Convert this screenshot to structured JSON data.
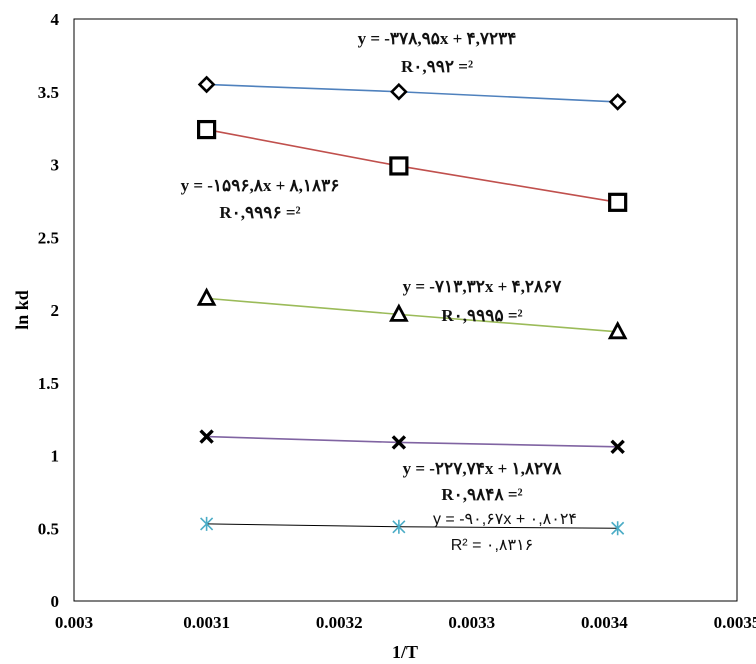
{
  "chart_data": {
    "type": "scatter",
    "title": "",
    "xlabel": "1/T",
    "ylabel": "ln kd",
    "xlim": [
      0.003,
      0.0035
    ],
    "ylim": [
      0,
      4
    ],
    "x_ticks": [
      "0.003",
      "0.0031",
      "0.0032",
      "0.0033",
      "0.0034",
      "0.0035"
    ],
    "y_ticks": [
      "0",
      "0.5",
      "1",
      "1.5",
      "2",
      "2.5",
      "3",
      "3.5",
      "4"
    ],
    "x": [
      0.0031,
      0.003245,
      0.00341
    ],
    "legend": "none",
    "series": [
      {
        "marker": "diamond",
        "color": "#4f81bd",
        "values": [
          3.55,
          3.5,
          3.43
        ],
        "equation": "y = -۳۷۸,۹۵x + ۴,۷۲۳۴",
        "r2": "R۰,۹۹۲ =²"
      },
      {
        "marker": "square",
        "color": "#c0504d",
        "values": [
          3.24,
          2.99,
          2.74
        ],
        "equation": "y = -۱۵۹۶,۸x + ۸,۱۸۳۶",
        "r2": "R۰,۹۹۹۶ =²"
      },
      {
        "marker": "triangle",
        "color": "#9bbb59",
        "values": [
          2.08,
          1.97,
          1.85
        ],
        "equation": "y = -۷۱۳,۳۲x + ۴,۲۸۶۷",
        "r2": "R۰,۹۹۹۵ =²"
      },
      {
        "marker": "x",
        "color": "#8064a2",
        "values": [
          1.13,
          1.09,
          1.06
        ],
        "equation": "y = -۲۲۷,۷۴x + ۱,۸۲۷۸",
        "r2": "R۰,۹۸۴۸ =²"
      },
      {
        "marker": "star",
        "color": "#4bacc6",
        "values": [
          0.53,
          0.51,
          0.5
        ],
        "equation": "y = -۹۰,۶۷x + ۰,۸۰۲۴",
        "r2": "R² = ۰,۸۳۱۶"
      }
    ]
  }
}
